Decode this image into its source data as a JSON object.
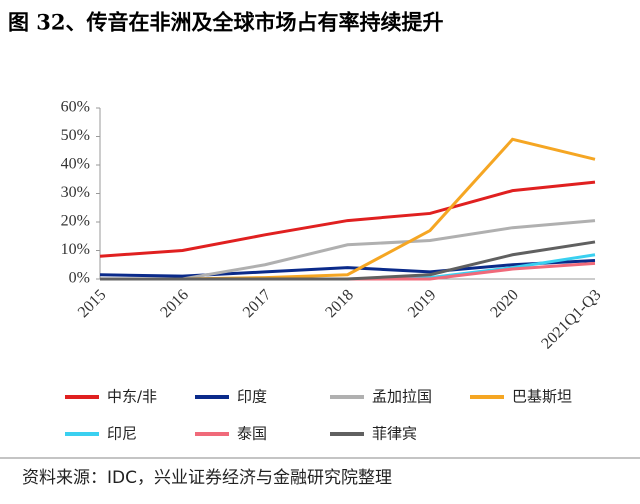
{
  "chart_data": {
    "type": "line",
    "title": "图 32、传音在非洲及全球市场占有率持续提升",
    "source": "资料来源：IDC，兴业证券经济与金融研究院整理",
    "categories": [
      "2015",
      "2016",
      "2017",
      "2018",
      "2019",
      "2020",
      "2021Q1-Q3"
    ],
    "ylim": [
      0,
      60
    ],
    "yticks": [
      {
        "value": 0,
        "label": "0%"
      },
      {
        "value": 10,
        "label": "10%"
      },
      {
        "value": 20,
        "label": "20%"
      },
      {
        "value": 30,
        "label": "30%"
      },
      {
        "value": 40,
        "label": "40%"
      },
      {
        "value": 50,
        "label": "50%"
      },
      {
        "value": 60,
        "label": "60%"
      }
    ],
    "series": [
      {
        "name": "中东/非",
        "color": "#e02020",
        "values": [
          8,
          10,
          15.5,
          20.5,
          23,
          31,
          34
        ]
      },
      {
        "name": "印度",
        "color": "#0a2a8a",
        "values": [
          1.5,
          1,
          2.5,
          4,
          2.5,
          5,
          6.5
        ]
      },
      {
        "name": "孟加拉国",
        "color": "#b0b0b0",
        "values": [
          0,
          0,
          5,
          12,
          13.5,
          18,
          20.5
        ]
      },
      {
        "name": "巴基斯坦",
        "color": "#f5a623",
        "values": [
          0,
          0,
          0.5,
          1.5,
          17,
          49,
          42
        ]
      },
      {
        "name": "印尼",
        "color": "#3ad0f0",
        "values": [
          0,
          0,
          0,
          0,
          0.5,
          4,
          8.5
        ]
      },
      {
        "name": "泰国",
        "color": "#f06a7a",
        "values": [
          0,
          0,
          0,
          0,
          0,
          3.5,
          5.5
        ]
      },
      {
        "name": "菲律宾",
        "color": "#606060",
        "values": [
          0,
          0,
          0,
          0,
          1.5,
          8.5,
          13
        ]
      }
    ]
  }
}
